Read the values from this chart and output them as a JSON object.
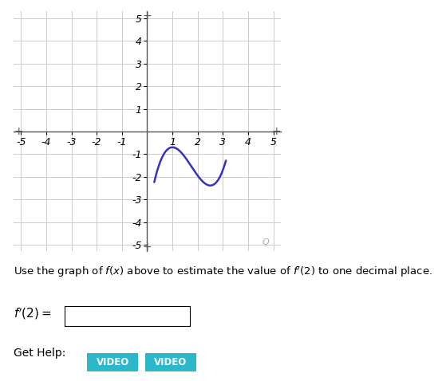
{
  "xlim": [
    -5.3,
    5.3
  ],
  "ylim": [
    -5.3,
    5.3
  ],
  "curve_color": "#3333bb",
  "curve_linewidth": 1.8,
  "grid_color": "#cccccc",
  "background_color": "#ffffff",
  "axis_color": "#555555",
  "text_instruction": "Use the graph of $f(x)$ above to estimate the value of $f'(2)$ to one decimal place.",
  "text_fprime": "$f'(2)=$",
  "text_gethelp": "Get Help:",
  "button_color": "#2ab8ca",
  "button_text_color": "#ffffff",
  "button1_label": "VIDEO",
  "button2_label": "VIDEO",
  "tick_fontsize": 9,
  "label_fontsize": 10,
  "func_a": 1.0,
  "func_b": -5.25,
  "func_c": 7.5,
  "func_d": -3.95,
  "x_start": 0.28,
  "x_end": 3.12
}
